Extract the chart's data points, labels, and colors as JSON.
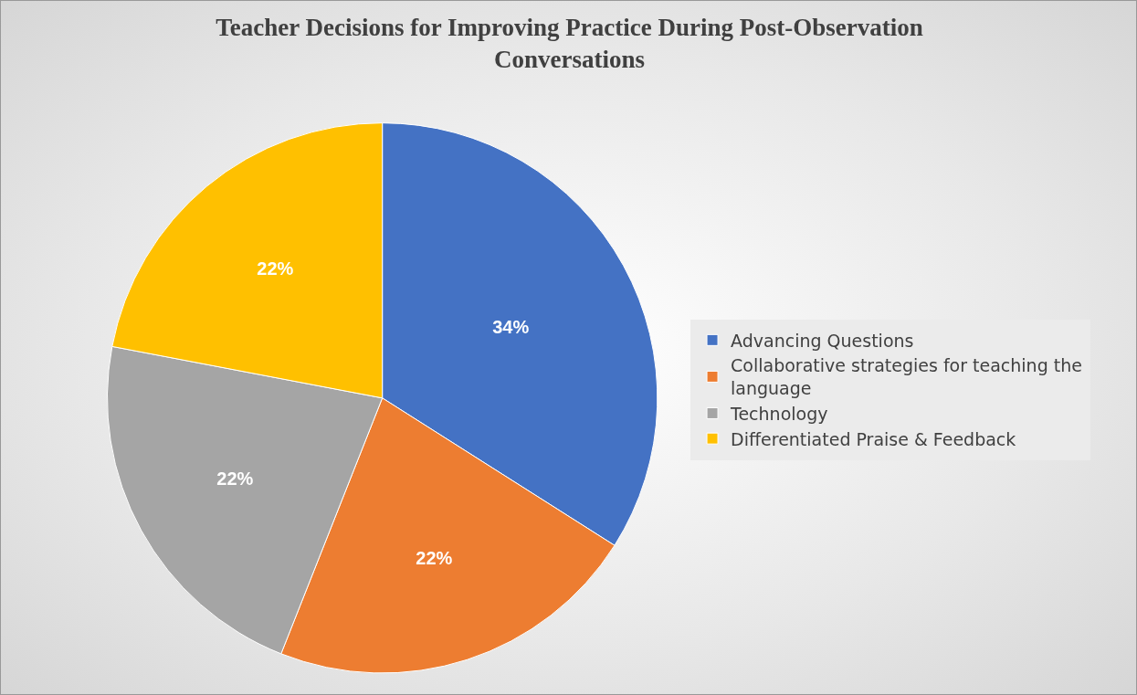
{
  "chart_data": {
    "type": "pie",
    "title": "Teacher Decisions for Improving Practice During Post-Observation Conversations",
    "categories": [
      "Advancing Questions",
      "Collaborative strategies for teaching the language",
      "Technology",
      "Differentiated Praise & Feedback"
    ],
    "values": [
      34,
      22,
      22,
      22
    ],
    "colors": [
      "#4472c4",
      "#ed7d31",
      "#a5a5a5",
      "#ffc000"
    ],
    "value_labels": [
      "34%",
      "22%",
      "22%",
      "22%"
    ],
    "legend": "right"
  }
}
